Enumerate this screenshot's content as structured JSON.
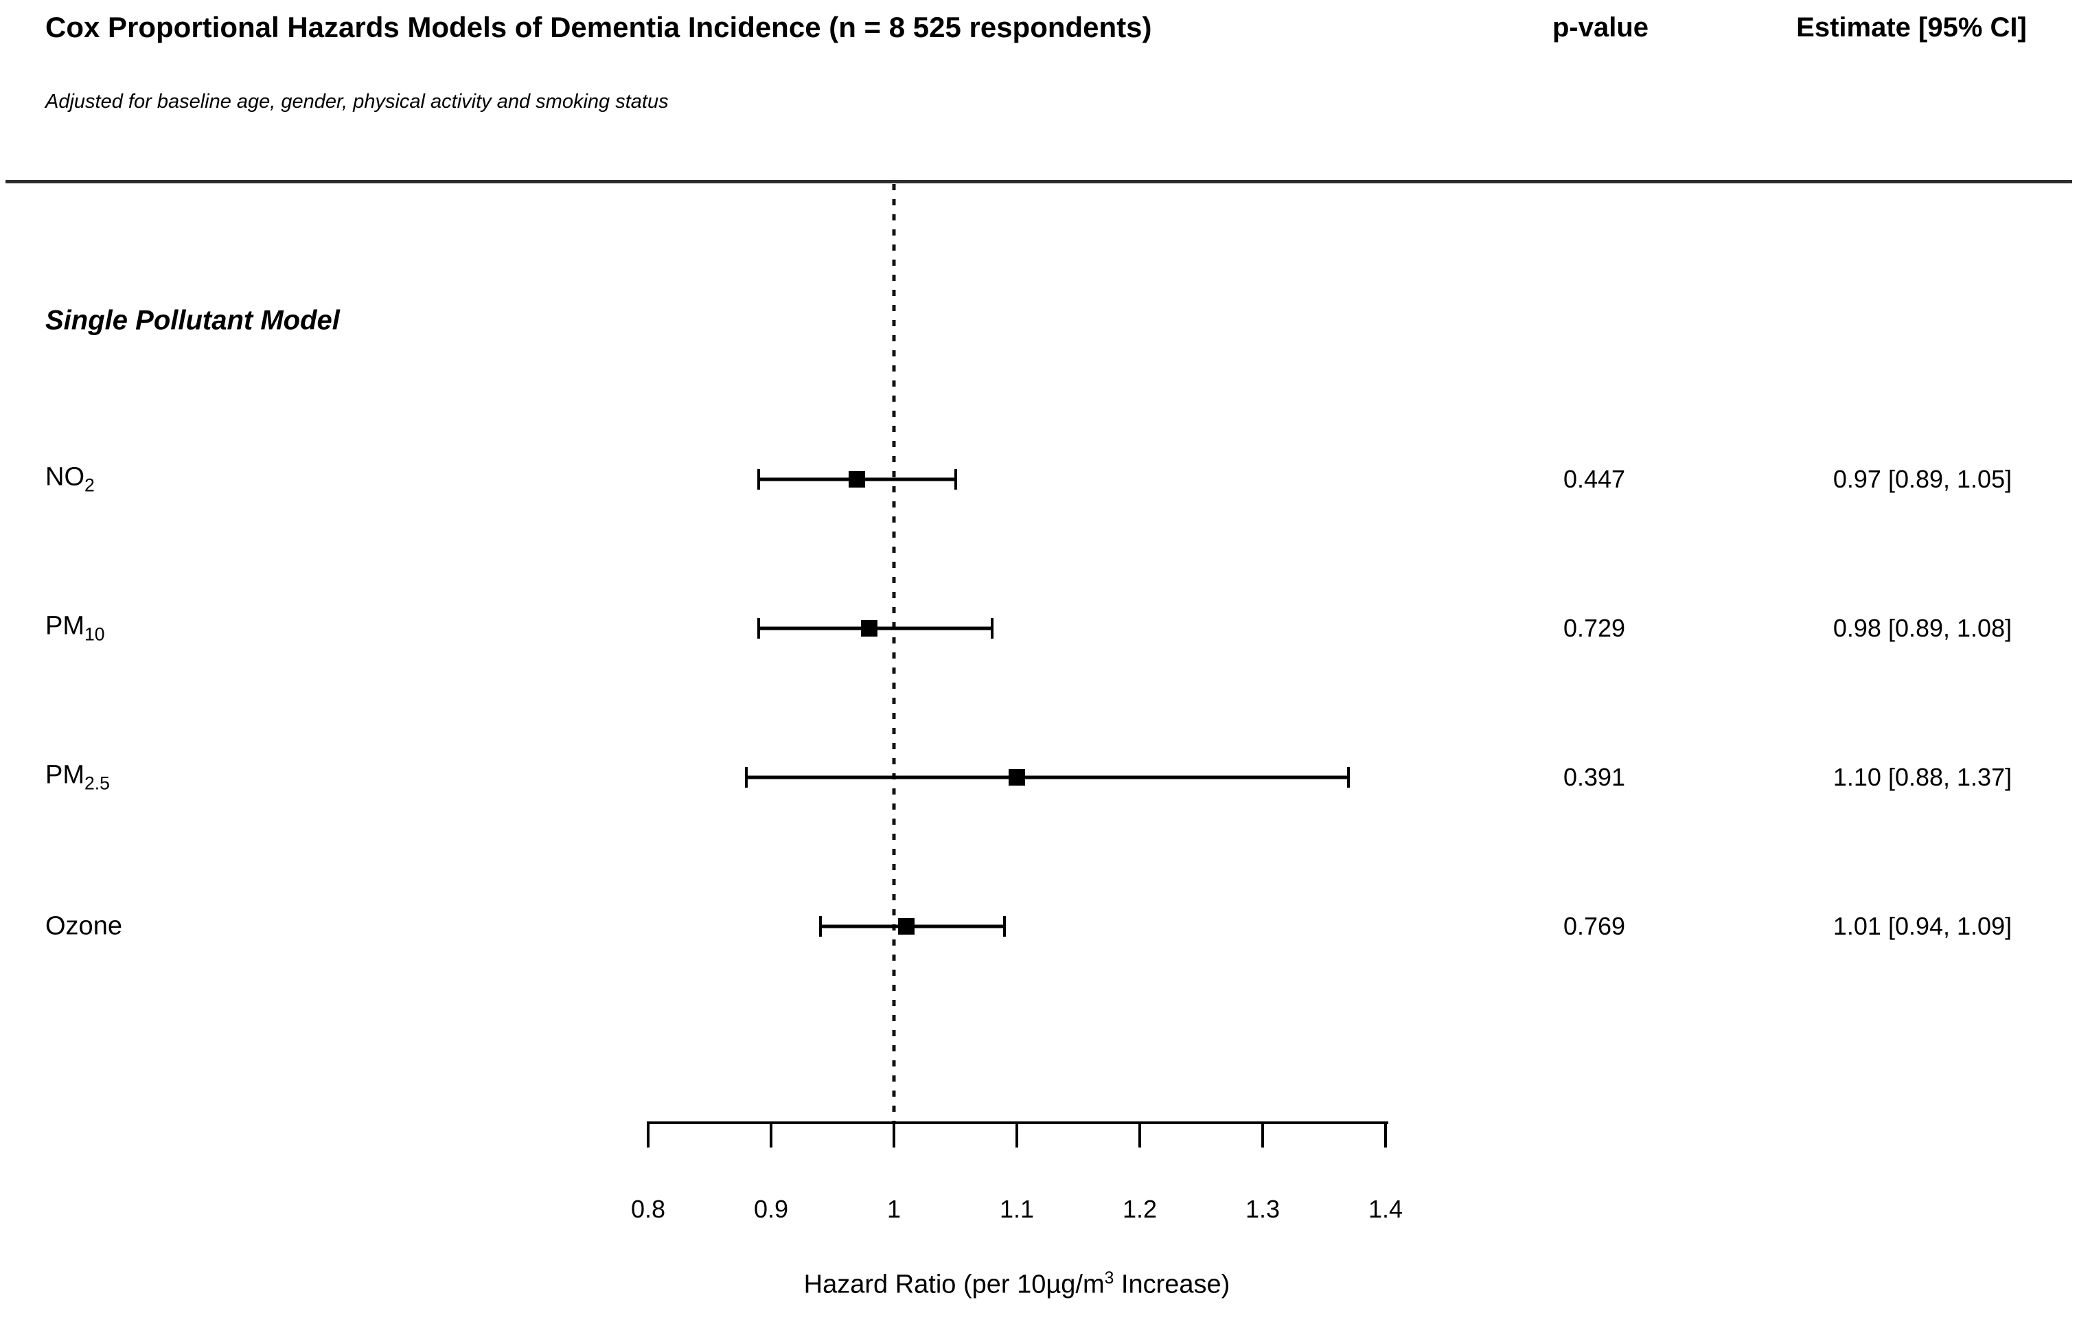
{
  "chart_data": {
    "type": "forest",
    "title": "Cox Proportional Hazards Models of Dementia Incidence (n = 8 525 respondents)",
    "subtitle": "Adjusted for baseline age, gender, physical activity and smoking status",
    "section": "Single Pollutant Model",
    "columns": {
      "p_value": "p-value",
      "estimate": "Estimate [95% CI]"
    },
    "rows": [
      {
        "label": "NO",
        "label_sub": "2",
        "estimate": 0.97,
        "ci_low": 0.89,
        "ci_high": 1.05,
        "p_value": "0.447",
        "estimate_text": "0.97 [0.89, 1.05]"
      },
      {
        "label": "PM",
        "label_sub": "10",
        "estimate": 0.98,
        "ci_low": 0.89,
        "ci_high": 1.08,
        "p_value": "0.729",
        "estimate_text": "0.98 [0.89, 1.08]"
      },
      {
        "label": "PM",
        "label_sub": "2.5",
        "estimate": 1.1,
        "ci_low": 0.88,
        "ci_high": 1.37,
        "p_value": "0.391",
        "estimate_text": "1.10 [0.88, 1.37]"
      },
      {
        "label": "Ozone",
        "label_sub": "",
        "estimate": 1.01,
        "ci_low": 0.94,
        "ci_high": 1.09,
        "p_value": "0.769",
        "estimate_text": "1.01 [0.94, 1.09]"
      }
    ],
    "xaxis": {
      "range": [
        0.8,
        1.4
      ],
      "ticks": [
        0.8,
        0.9,
        1,
        1.1,
        1.2,
        1.3,
        1.4
      ],
      "tick_labels": [
        "0.8",
        "0.9",
        "1",
        "1.1",
        "1.2",
        "1.3",
        "1.4"
      ],
      "reference_line": 1,
      "label_pre": "Hazard Ratio (per 10µg/m",
      "label_sup": "3",
      "label_post": " Increase)"
    },
    "colors": {
      "foreground": "#000000",
      "rule": "#2e2e2e",
      "background": "#ffffff"
    },
    "legend": "none",
    "grid": "off"
  }
}
